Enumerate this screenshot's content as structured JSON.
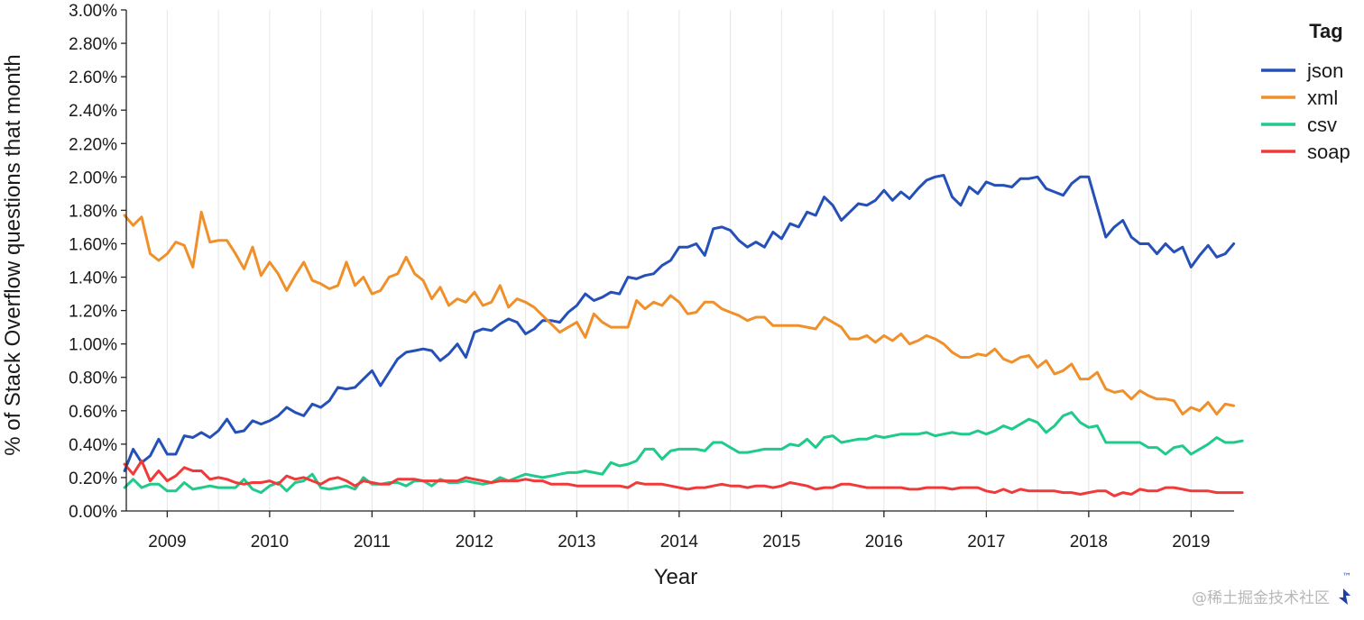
{
  "chart_data": {
    "type": "line",
    "title": "",
    "xlabel": "Year",
    "ylabel": "% of Stack Overflow questions that month",
    "xlim": [
      2008.6,
      2019.42
    ],
    "ylim": [
      0,
      3.0
    ],
    "grid": "vertical",
    "yticks": [
      "0.00%",
      "0.20%",
      "0.40%",
      "0.60%",
      "0.80%",
      "1.00%",
      "1.20%",
      "1.40%",
      "1.60%",
      "1.80%",
      "2.00%",
      "2.20%",
      "2.40%",
      "2.60%",
      "2.80%",
      "3.00%"
    ],
    "xticks": [
      "2009",
      "2010",
      "2011",
      "2012",
      "2013",
      "2014",
      "2015",
      "2016",
      "2017",
      "2018",
      "2019"
    ],
    "legend": {
      "title": "Tag",
      "placement": "right"
    },
    "x_start": "2008-08",
    "series": [
      {
        "name": "json",
        "color": "#2450b8",
        "values": [
          0.24,
          0.37,
          0.29,
          0.33,
          0.43,
          0.34,
          0.34,
          0.45,
          0.44,
          0.47,
          0.44,
          0.48,
          0.55,
          0.47,
          0.48,
          0.54,
          0.52,
          0.54,
          0.57,
          0.62,
          0.59,
          0.57,
          0.64,
          0.62,
          0.66,
          0.74,
          0.73,
          0.74,
          0.79,
          0.84,
          0.75,
          0.83,
          0.91,
          0.95,
          0.96,
          0.97,
          0.96,
          0.9,
          0.94,
          1.0,
          0.92,
          1.07,
          1.09,
          1.08,
          1.12,
          1.15,
          1.13,
          1.06,
          1.09,
          1.14,
          1.14,
          1.13,
          1.19,
          1.23,
          1.3,
          1.26,
          1.28,
          1.31,
          1.3,
          1.4,
          1.39,
          1.41,
          1.42,
          1.47,
          1.5,
          1.58,
          1.58,
          1.6,
          1.53,
          1.69,
          1.7,
          1.68,
          1.62,
          1.58,
          1.61,
          1.58,
          1.67,
          1.63,
          1.72,
          1.7,
          1.79,
          1.77,
          1.88,
          1.83,
          1.74,
          1.79,
          1.84,
          1.83,
          1.86,
          1.92,
          1.86,
          1.91,
          1.87,
          1.93,
          1.98,
          2.0,
          2.01,
          1.88,
          1.83,
          1.94,
          1.9,
          1.97,
          1.95,
          1.95,
          1.94,
          1.99,
          1.99,
          2.0,
          1.93,
          1.91,
          1.89,
          1.96,
          2.0,
          2.0,
          1.82,
          1.64,
          1.7,
          1.74,
          1.64,
          1.6,
          1.6,
          1.54,
          1.6,
          1.55,
          1.58,
          1.46,
          1.53,
          1.59,
          1.52,
          1.54,
          1.6
        ]
      },
      {
        "name": "xml",
        "color": "#f0902a",
        "values": [
          1.77,
          1.71,
          1.76,
          1.54,
          1.5,
          1.54,
          1.61,
          1.59,
          1.46,
          1.79,
          1.61,
          1.62,
          1.62,
          1.54,
          1.45,
          1.58,
          1.41,
          1.49,
          1.42,
          1.32,
          1.41,
          1.49,
          1.38,
          1.36,
          1.33,
          1.35,
          1.49,
          1.35,
          1.4,
          1.3,
          1.32,
          1.4,
          1.42,
          1.52,
          1.42,
          1.38,
          1.27,
          1.34,
          1.23,
          1.27,
          1.25,
          1.31,
          1.23,
          1.25,
          1.35,
          1.22,
          1.27,
          1.25,
          1.22,
          1.17,
          1.12,
          1.07,
          1.1,
          1.13,
          1.04,
          1.18,
          1.13,
          1.1,
          1.1,
          1.1,
          1.26,
          1.21,
          1.25,
          1.23,
          1.29,
          1.25,
          1.18,
          1.19,
          1.25,
          1.25,
          1.21,
          1.19,
          1.17,
          1.14,
          1.16,
          1.16,
          1.11,
          1.11,
          1.11,
          1.11,
          1.1,
          1.09,
          1.16,
          1.13,
          1.1,
          1.03,
          1.03,
          1.05,
          1.01,
          1.05,
          1.02,
          1.06,
          1.0,
          1.02,
          1.05,
          1.03,
          1.0,
          0.95,
          0.92,
          0.92,
          0.94,
          0.93,
          0.97,
          0.91,
          0.89,
          0.92,
          0.93,
          0.86,
          0.9,
          0.82,
          0.84,
          0.88,
          0.79,
          0.79,
          0.83,
          0.73,
          0.71,
          0.72,
          0.67,
          0.72,
          0.69,
          0.67,
          0.67,
          0.66,
          0.58,
          0.62,
          0.6,
          0.65,
          0.58,
          0.64,
          0.63
        ]
      },
      {
        "name": "csv",
        "color": "#1fca8b",
        "values": [
          0.14,
          0.19,
          0.14,
          0.16,
          0.16,
          0.12,
          0.12,
          0.17,
          0.13,
          0.14,
          0.15,
          0.14,
          0.14,
          0.14,
          0.19,
          0.13,
          0.11,
          0.15,
          0.17,
          0.12,
          0.17,
          0.18,
          0.22,
          0.14,
          0.13,
          0.14,
          0.15,
          0.13,
          0.2,
          0.16,
          0.16,
          0.17,
          0.17,
          0.15,
          0.18,
          0.18,
          0.15,
          0.19,
          0.17,
          0.17,
          0.18,
          0.17,
          0.16,
          0.17,
          0.2,
          0.18,
          0.2,
          0.22,
          0.21,
          0.2,
          0.21,
          0.22,
          0.23,
          0.23,
          0.24,
          0.23,
          0.22,
          0.29,
          0.27,
          0.28,
          0.3,
          0.37,
          0.37,
          0.31,
          0.36,
          0.37,
          0.37,
          0.37,
          0.36,
          0.41,
          0.41,
          0.38,
          0.35,
          0.35,
          0.36,
          0.37,
          0.37,
          0.37,
          0.4,
          0.39,
          0.43,
          0.38,
          0.44,
          0.45,
          0.41,
          0.42,
          0.43,
          0.43,
          0.45,
          0.44,
          0.45,
          0.46,
          0.46,
          0.46,
          0.47,
          0.45,
          0.46,
          0.47,
          0.46,
          0.46,
          0.48,
          0.46,
          0.48,
          0.51,
          0.49,
          0.52,
          0.55,
          0.53,
          0.47,
          0.51,
          0.57,
          0.59,
          0.53,
          0.5,
          0.51,
          0.41,
          0.41,
          0.41,
          0.41,
          0.41,
          0.38,
          0.38,
          0.34,
          0.38,
          0.39,
          0.34,
          0.37,
          0.4,
          0.44,
          0.41,
          0.41,
          0.42
        ]
      },
      {
        "name": "soap",
        "color": "#f03a3a",
        "values": [
          0.28,
          0.22,
          0.3,
          0.18,
          0.24,
          0.18,
          0.21,
          0.26,
          0.24,
          0.24,
          0.19,
          0.2,
          0.19,
          0.17,
          0.16,
          0.17,
          0.17,
          0.18,
          0.16,
          0.21,
          0.19,
          0.2,
          0.18,
          0.16,
          0.19,
          0.2,
          0.18,
          0.15,
          0.18,
          0.17,
          0.16,
          0.16,
          0.19,
          0.19,
          0.19,
          0.18,
          0.18,
          0.18,
          0.18,
          0.18,
          0.2,
          0.19,
          0.18,
          0.17,
          0.18,
          0.18,
          0.18,
          0.19,
          0.18,
          0.18,
          0.16,
          0.16,
          0.16,
          0.15,
          0.15,
          0.15,
          0.15,
          0.15,
          0.15,
          0.14,
          0.17,
          0.16,
          0.16,
          0.16,
          0.15,
          0.14,
          0.13,
          0.14,
          0.14,
          0.15,
          0.16,
          0.15,
          0.15,
          0.14,
          0.15,
          0.15,
          0.14,
          0.15,
          0.17,
          0.16,
          0.15,
          0.13,
          0.14,
          0.14,
          0.16,
          0.16,
          0.15,
          0.14,
          0.14,
          0.14,
          0.14,
          0.14,
          0.13,
          0.13,
          0.14,
          0.14,
          0.14,
          0.13,
          0.14,
          0.14,
          0.14,
          0.12,
          0.11,
          0.13,
          0.11,
          0.13,
          0.12,
          0.12,
          0.12,
          0.12,
          0.11,
          0.11,
          0.1,
          0.11,
          0.12,
          0.12,
          0.09,
          0.11,
          0.1,
          0.13,
          0.12,
          0.12,
          0.14,
          0.14,
          0.13,
          0.12,
          0.12,
          0.12,
          0.11,
          0.11,
          0.11,
          0.11
        ]
      }
    ]
  },
  "watermark": {
    "text": "@稀土掘金技术社区",
    "mark": "™"
  }
}
